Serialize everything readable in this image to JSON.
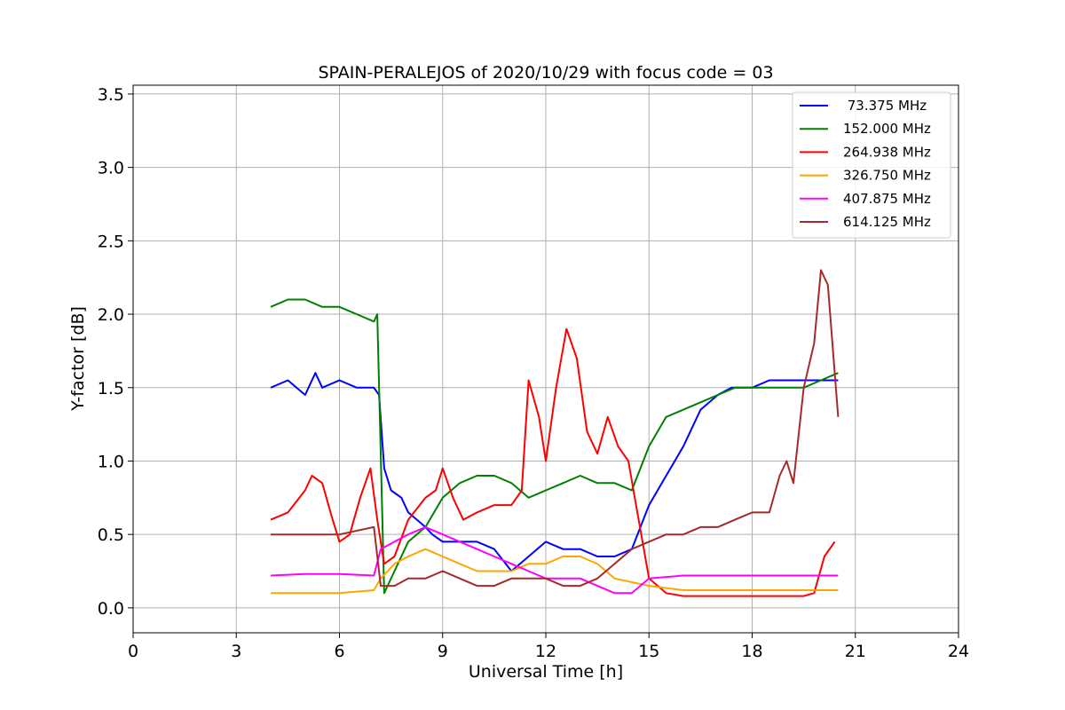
{
  "chart_data": {
    "type": "line",
    "title": "SPAIN-PERALEJOS of 2020/10/29 with focus code = 03",
    "xlabel": "Universal Time [h]",
    "ylabel": "Y-factor [dB]",
    "xlim": [
      0,
      24
    ],
    "ylim": [
      -0.17,
      3.56
    ],
    "xticks": [
      0,
      3,
      6,
      9,
      12,
      15,
      18,
      21,
      24
    ],
    "yticks": [
      0.0,
      0.5,
      1.0,
      1.5,
      2.0,
      2.5,
      3.0,
      3.5
    ],
    "grid": true,
    "legend_position": "top-right",
    "series": [
      {
        "name": " 73.375 MHz",
        "color": "#0000ff",
        "x": [
          4.0,
          4.5,
          5.0,
          5.3,
          5.5,
          6.0,
          6.5,
          7.0,
          7.15,
          7.3,
          7.5,
          7.8,
          8.0,
          8.5,
          8.7,
          9.0,
          9.5,
          10.0,
          10.5,
          11.0,
          11.5,
          12.0,
          12.5,
          13.0,
          13.5,
          14.0,
          14.5,
          15.0,
          15.5,
          16.0,
          16.5,
          17.0,
          17.4,
          18.0,
          18.5,
          19.0,
          19.5,
          20.0,
          20.5
        ],
        "y": [
          1.5,
          1.55,
          1.45,
          1.6,
          1.5,
          1.55,
          1.5,
          1.5,
          1.45,
          0.95,
          0.8,
          0.75,
          0.65,
          0.55,
          0.5,
          0.45,
          0.45,
          0.45,
          0.4,
          0.25,
          0.35,
          0.45,
          0.4,
          0.4,
          0.35,
          0.35,
          0.4,
          0.7,
          0.9,
          1.1,
          1.35,
          1.45,
          1.5,
          1.5,
          1.55,
          1.55,
          1.55,
          1.55,
          1.55
        ]
      },
      {
        "name": "152.000 MHz",
        "color": "#008000",
        "x": [
          4.0,
          4.5,
          5.0,
          5.5,
          6.0,
          6.5,
          7.0,
          7.1,
          7.3,
          7.6,
          8.0,
          8.5,
          9.0,
          9.5,
          10.0,
          10.5,
          11.0,
          11.5,
          12.0,
          12.5,
          13.0,
          13.5,
          14.0,
          14.5,
          15.0,
          15.5,
          16.0,
          16.5,
          17.0,
          17.5,
          18.0,
          18.5,
          19.0,
          19.5,
          20.0,
          20.5
        ],
        "y": [
          2.05,
          2.1,
          2.1,
          2.05,
          2.05,
          2.0,
          1.95,
          2.0,
          0.1,
          0.25,
          0.45,
          0.55,
          0.75,
          0.85,
          0.9,
          0.9,
          0.85,
          0.75,
          0.8,
          0.85,
          0.9,
          0.85,
          0.85,
          0.8,
          1.1,
          1.3,
          1.35,
          1.4,
          1.45,
          1.5,
          1.5,
          1.5,
          1.5,
          1.5,
          1.55,
          1.6
        ]
      },
      {
        "name": "264.938 MHz",
        "color": "#ff0000",
        "x": [
          4.0,
          4.5,
          5.0,
          5.2,
          5.5,
          5.8,
          6.0,
          6.3,
          6.6,
          6.9,
          7.1,
          7.3,
          7.6,
          8.0,
          8.5,
          8.8,
          9.0,
          9.3,
          9.6,
          10.0,
          10.5,
          11.0,
          11.3,
          11.5,
          11.8,
          12.0,
          12.3,
          12.6,
          12.9,
          13.2,
          13.5,
          13.8,
          14.1,
          14.4,
          14.7,
          15.0,
          15.5,
          16.0,
          16.5,
          17.0,
          17.5,
          18.0,
          18.5,
          19.0,
          19.5,
          19.8,
          20.1,
          20.4
        ],
        "y": [
          0.6,
          0.65,
          0.8,
          0.9,
          0.85,
          0.6,
          0.45,
          0.5,
          0.75,
          0.95,
          0.6,
          0.3,
          0.35,
          0.6,
          0.75,
          0.8,
          0.95,
          0.75,
          0.6,
          0.65,
          0.7,
          0.7,
          0.8,
          1.55,
          1.3,
          1.0,
          1.5,
          1.9,
          1.7,
          1.2,
          1.05,
          1.3,
          1.1,
          1.0,
          0.6,
          0.2,
          0.1,
          0.08,
          0.08,
          0.08,
          0.08,
          0.08,
          0.08,
          0.08,
          0.08,
          0.1,
          0.35,
          0.45
        ]
      },
      {
        "name": "326.750 MHz",
        "color": "#ffa500",
        "x": [
          4.0,
          5.0,
          6.0,
          7.0,
          7.2,
          7.6,
          8.0,
          8.5,
          9.0,
          9.5,
          10.0,
          11.0,
          11.5,
          12.0,
          12.5,
          13.0,
          13.5,
          14.0,
          15.0,
          16.0,
          17.0,
          18.0,
          19.0,
          20.0,
          20.5
        ],
        "y": [
          0.1,
          0.1,
          0.1,
          0.12,
          0.2,
          0.3,
          0.35,
          0.4,
          0.35,
          0.3,
          0.25,
          0.25,
          0.3,
          0.3,
          0.35,
          0.35,
          0.3,
          0.2,
          0.15,
          0.12,
          0.12,
          0.12,
          0.12,
          0.12,
          0.12
        ]
      },
      {
        "name": "407.875 MHz",
        "color": "#ff00ff",
        "x": [
          4.0,
          5.0,
          6.0,
          7.0,
          7.2,
          7.6,
          8.0,
          8.5,
          9.0,
          9.5,
          10.0,
          10.5,
          11.0,
          11.5,
          12.0,
          12.5,
          13.0,
          13.5,
          14.0,
          14.5,
          15.0,
          16.0,
          17.0,
          18.0,
          19.0,
          20.0,
          20.5
        ],
        "y": [
          0.22,
          0.23,
          0.23,
          0.22,
          0.4,
          0.45,
          0.5,
          0.55,
          0.5,
          0.45,
          0.4,
          0.35,
          0.3,
          0.25,
          0.2,
          0.2,
          0.2,
          0.15,
          0.1,
          0.1,
          0.2,
          0.22,
          0.22,
          0.22,
          0.22,
          0.22,
          0.22
        ]
      },
      {
        "name": "614.125 MHz",
        "color": "#a52a2a",
        "x": [
          4.0,
          5.0,
          6.0,
          7.0,
          7.2,
          7.6,
          8.0,
          8.5,
          9.0,
          9.5,
          10.0,
          10.5,
          11.0,
          11.5,
          12.0,
          12.5,
          13.0,
          13.5,
          14.0,
          14.5,
          15.0,
          15.5,
          16.0,
          16.5,
          17.0,
          17.5,
          18.0,
          18.5,
          18.8,
          19.0,
          19.2,
          19.5,
          19.8,
          20.0,
          20.2,
          20.5
        ],
        "y": [
          0.5,
          0.5,
          0.5,
          0.55,
          0.15,
          0.15,
          0.2,
          0.2,
          0.25,
          0.2,
          0.15,
          0.15,
          0.2,
          0.2,
          0.2,
          0.15,
          0.15,
          0.2,
          0.3,
          0.4,
          0.45,
          0.5,
          0.5,
          0.55,
          0.55,
          0.6,
          0.65,
          0.65,
          0.9,
          1.0,
          0.85,
          1.5,
          1.8,
          2.3,
          2.2,
          1.3
        ]
      }
    ]
  }
}
